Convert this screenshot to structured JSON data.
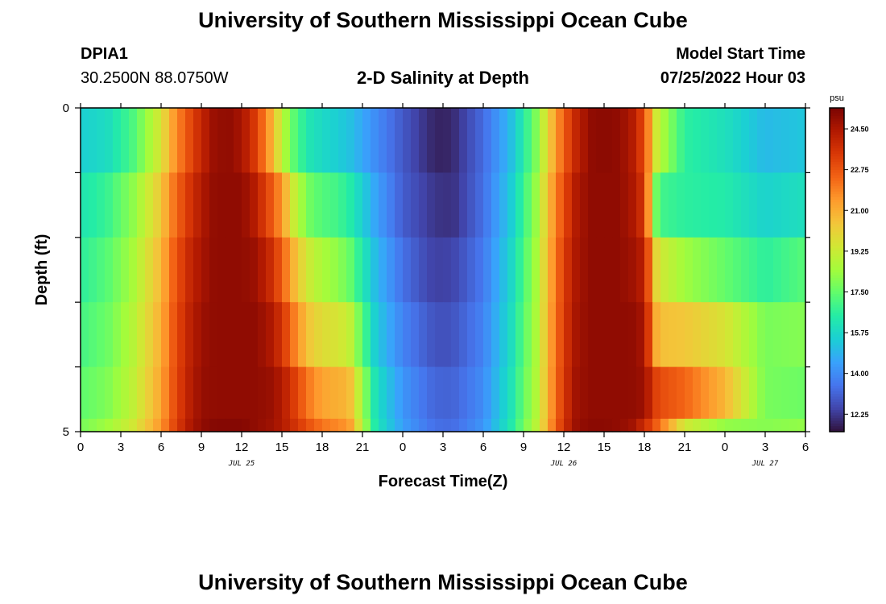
{
  "header": {
    "title": "University of Southern Mississippi Ocean Cube",
    "station": "DPIA1",
    "coords": "30.2500N  88.0750W",
    "subtitle": "2-D Salinity at Depth",
    "model_start_label": "Model Start Time",
    "model_start_value": "07/25/2022 Hour 03"
  },
  "footer": {
    "title": "University of Southern Mississippi Ocean Cube"
  },
  "chart_data": {
    "type": "heatmap",
    "title": "2-D Salinity at Depth",
    "xlabel": "Forecast Time(Z)",
    "ylabel": "Depth (ft)",
    "x_hours": [
      0,
      54
    ],
    "y_range": [
      0,
      5
    ],
    "x_tick_labels": [
      "0",
      "3",
      "6",
      "9",
      "12",
      "15",
      "18",
      "21",
      "0",
      "3",
      "6",
      "9",
      "12",
      "15",
      "18",
      "21",
      "0",
      "3",
      "6"
    ],
    "y_tick_labels": [
      "0",
      "5"
    ],
    "date_labels": [
      {
        "label": "JUL 25",
        "hour": 12
      },
      {
        "label": "JUL 26",
        "hour": 36
      },
      {
        "label": "JUL 27",
        "hour": 51
      }
    ],
    "colorbar": {
      "unit": "psu",
      "min": 11.5,
      "max": 25.4,
      "tick_values": [
        24.5,
        22.75,
        21.0,
        19.25,
        17.5,
        15.75,
        14.0,
        12.25
      ],
      "tick_labels": [
        "24.50",
        "22.75",
        "21.00",
        "19.25",
        "17.50",
        "15.75",
        "14.00",
        "12.25"
      ],
      "colors": [
        "#30123b",
        "#4145ab",
        "#4675ed",
        "#39a2fc",
        "#1bcfd4",
        "#24eca6",
        "#61fc6c",
        "#a4fc3b",
        "#d1e834",
        "#f3c63a",
        "#fe9b2d",
        "#f36315",
        "#d93806",
        "#b11901",
        "#7a0403"
      ]
    },
    "depth_layers": [
      0.0,
      1.0,
      2.0,
      3.0,
      4.0,
      4.8
    ],
    "salinity_rows": [
      {
        "depth": 0.0,
        "hours": [
          0,
          2,
          4,
          6,
          7,
          8,
          9,
          10,
          11,
          12,
          13,
          14,
          15,
          16,
          17,
          18,
          19,
          20,
          22,
          24,
          26,
          27,
          28,
          30,
          32,
          33,
          34,
          35,
          36,
          37,
          38,
          39,
          40,
          41,
          42,
          43,
          45,
          48,
          51,
          54
        ],
        "values": [
          15.5,
          15.9,
          17.2,
          19.6,
          21.5,
          22.8,
          24.0,
          24.9,
          25.0,
          24.6,
          23.4,
          21.5,
          19.0,
          17.2,
          16.2,
          15.8,
          15.5,
          15.2,
          14.0,
          12.9,
          12.0,
          11.8,
          12.1,
          13.3,
          15.0,
          16.4,
          18.0,
          20.5,
          22.6,
          24.1,
          25.0,
          25.1,
          25.0,
          24.5,
          23.0,
          19.0,
          16.6,
          16.0,
          15.0,
          15.3
        ]
      },
      {
        "depth": 1.0,
        "hours": [
          0,
          2,
          4,
          6,
          7,
          8,
          9,
          10,
          11,
          12,
          13,
          14,
          15,
          16,
          17,
          18,
          19,
          20,
          22,
          24,
          26,
          27,
          28,
          30,
          32,
          33,
          34,
          35,
          36,
          37,
          38,
          39,
          40,
          41,
          42,
          43,
          45,
          48,
          51,
          54
        ],
        "values": [
          16.2,
          16.8,
          18.2,
          20.4,
          22.2,
          23.4,
          24.4,
          25.0,
          25.0,
          25.0,
          24.3,
          23.0,
          21.5,
          19.0,
          17.7,
          17.2,
          17.0,
          16.5,
          14.5,
          13.0,
          12.3,
          12.1,
          12.2,
          13.4,
          15.3,
          16.8,
          18.4,
          21.0,
          23.0,
          24.5,
          25.0,
          25.0,
          25.0,
          24.6,
          23.5,
          17.0,
          16.6,
          16.4,
          15.6,
          16.0
        ]
      },
      {
        "depth": 2.0,
        "hours": [
          0,
          2,
          4,
          6,
          7,
          8,
          9,
          10,
          11,
          12,
          13,
          14,
          15,
          16,
          17,
          18,
          19,
          20,
          22,
          24,
          26,
          27,
          28,
          30,
          32,
          33,
          34,
          35,
          36,
          37,
          38,
          39,
          40,
          41,
          42,
          43,
          45,
          48,
          51,
          54
        ],
        "values": [
          16.6,
          17.3,
          18.6,
          20.8,
          22.6,
          23.8,
          24.6,
          25.0,
          25.0,
          25.0,
          24.8,
          24.0,
          22.6,
          20.6,
          19.3,
          18.6,
          18.2,
          17.6,
          15.0,
          13.4,
          12.5,
          12.4,
          12.6,
          13.6,
          15.6,
          17.1,
          18.6,
          21.2,
          23.3,
          24.6,
          25.0,
          25.0,
          25.0,
          24.8,
          24.2,
          19.5,
          18.4,
          17.5,
          16.6,
          17.3
        ]
      },
      {
        "depth": 3.0,
        "hours": [
          0,
          2,
          4,
          6,
          7,
          8,
          9,
          10,
          11,
          12,
          13,
          14,
          15,
          16,
          17,
          18,
          19,
          20,
          22,
          24,
          26,
          27,
          28,
          30,
          32,
          33,
          34,
          35,
          36,
          37,
          38,
          39,
          40,
          41,
          42,
          43,
          45,
          48,
          51,
          54
        ],
        "values": [
          17.0,
          17.6,
          18.9,
          21.0,
          22.8,
          24.0,
          24.8,
          25.0,
          25.0,
          25.0,
          25.0,
          24.6,
          23.6,
          21.8,
          20.4,
          19.8,
          19.6,
          19.2,
          15.4,
          13.8,
          12.9,
          12.7,
          12.9,
          13.8,
          15.8,
          17.3,
          18.7,
          21.3,
          23.4,
          24.7,
          25.0,
          25.0,
          25.0,
          25.0,
          24.6,
          20.6,
          20.4,
          19.6,
          17.8,
          18.0
        ]
      },
      {
        "depth": 4.0,
        "hours": [
          0,
          2,
          4,
          6,
          7,
          8,
          9,
          10,
          11,
          12,
          13,
          14,
          15,
          16,
          17,
          18,
          19,
          20,
          22,
          24,
          26,
          27,
          28,
          30,
          32,
          33,
          34,
          35,
          36,
          37,
          38,
          39,
          40,
          41,
          42,
          43,
          45,
          48,
          51,
          54
        ],
        "values": [
          17.4,
          17.9,
          19.1,
          21.2,
          22.9,
          24.1,
          24.9,
          25.0,
          25.0,
          25.0,
          25.0,
          24.9,
          24.4,
          23.2,
          22.0,
          21.2,
          21.0,
          20.8,
          16.0,
          14.2,
          13.3,
          13.1,
          13.2,
          14.0,
          16.0,
          17.5,
          18.8,
          21.4,
          23.5,
          24.8,
          25.0,
          25.0,
          25.0,
          25.0,
          24.8,
          23.0,
          22.4,
          20.8,
          17.8,
          17.6
        ]
      },
      {
        "depth": 4.8,
        "hours": [
          0,
          2,
          4,
          6,
          7,
          8,
          9,
          10,
          11,
          12,
          13,
          14,
          15,
          16,
          17,
          18,
          19,
          20,
          22,
          24,
          26,
          27,
          28,
          30,
          32,
          33,
          34,
          35,
          36,
          37,
          38,
          39,
          40,
          41,
          42,
          43,
          45,
          48,
          51,
          54
        ],
        "values": [
          17.8,
          18.4,
          19.5,
          21.5,
          23.1,
          24.3,
          25.0,
          25.2,
          25.2,
          25.2,
          25.0,
          24.8,
          24.4,
          23.6,
          22.8,
          22.1,
          21.8,
          21.5,
          16.2,
          14.4,
          13.5,
          13.3,
          13.4,
          14.2,
          16.2,
          17.7,
          19.0,
          21.6,
          23.7,
          24.9,
          25.1,
          25.1,
          25.0,
          24.8,
          23.8,
          22.4,
          19.4,
          18.2,
          18.0,
          18.2
        ]
      }
    ]
  }
}
